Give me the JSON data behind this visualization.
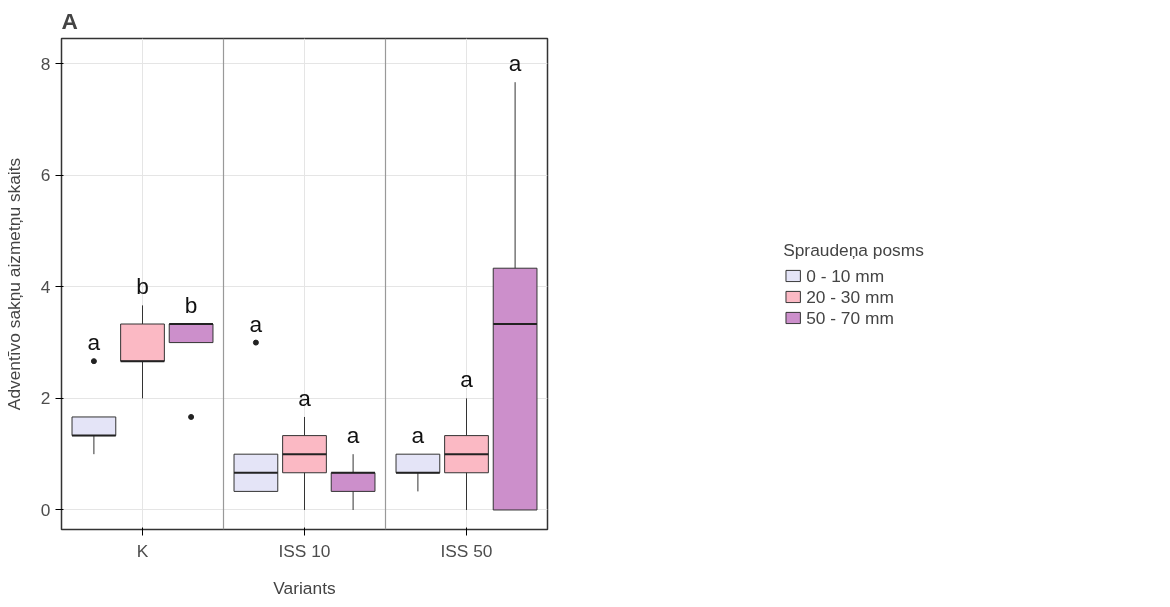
{
  "chart_data": {
    "type": "box",
    "title": "A",
    "xlabel": "Variants",
    "ylabel": "Adventīvo sakņu aizmetņu skaits",
    "categories": [
      "K",
      "ISS 10",
      "ISS 50"
    ],
    "ylim": [
      -0.35,
      8.45
    ],
    "yticks": [
      0,
      2,
      4,
      6,
      8
    ],
    "grid": true,
    "legend": "right",
    "legend_title": "Spraudeņa posms",
    "series": [
      {
        "name": "0 - 10 mm",
        "color": "#e4e4f7",
        "boxes": [
          {
            "low": 1.0,
            "q1": 1.333,
            "median": 1.333,
            "q3": 1.667,
            "high": 1.667,
            "outliers": [
              2.667
            ]
          },
          {
            "low": 0.333,
            "q1": 0.333,
            "median": 0.667,
            "q3": 1.0,
            "high": 1.0,
            "outliers": [
              3.0
            ]
          },
          {
            "low": 0.333,
            "q1": 0.667,
            "median": 0.667,
            "q3": 1.0,
            "high": 1.0
          }
        ]
      },
      {
        "name": "20 - 30 mm",
        "color": "#fbb9c4",
        "boxes": [
          {
            "low": 2.0,
            "q1": 2.667,
            "median": 2.667,
            "q3": 3.333,
            "high": 3.667
          },
          {
            "low": 0.0,
            "q1": 0.667,
            "median": 1.0,
            "q3": 1.333,
            "high": 1.667
          },
          {
            "low": 0.0,
            "q1": 0.667,
            "median": 1.0,
            "q3": 1.333,
            "high": 2.0
          }
        ]
      },
      {
        "name": "50 - 70 mm",
        "color": "#cc8fcb",
        "boxes": [
          {
            "low": 3.0,
            "q1": 3.0,
            "median": 3.333,
            "q3": 3.333,
            "high": 3.333,
            "outliers": [
              1.667
            ]
          },
          {
            "low": 0.0,
            "q1": 0.333,
            "median": 0.667,
            "q3": 0.667,
            "high": 1.0
          },
          {
            "low": 0.0,
            "q1": 0.0,
            "median": 3.333,
            "q3": 4.333,
            "high": 7.667
          }
        ]
      }
    ],
    "annotations": [
      "a",
      "b",
      "b",
      "a",
      "a",
      "a",
      "a",
      "a",
      "a"
    ]
  }
}
